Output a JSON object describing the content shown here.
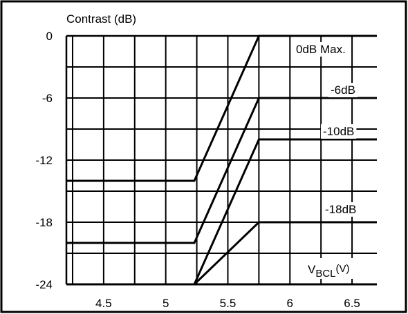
{
  "chart_data": {
    "type": "line",
    "ylabel": "Contrast (dB)",
    "xlabel_main": "V",
    "xlabel_sub": "BCL",
    "xlabel_unit": "(V)",
    "xlim": [
      4.2,
      6.7
    ],
    "ylim": [
      -24,
      0
    ],
    "x_ticks": [
      4.5,
      5,
      5.5,
      6,
      6.5
    ],
    "y_ticks": [
      0,
      -6,
      -12,
      -18,
      -24
    ],
    "x_tick_labels": [
      "4.5",
      "5",
      "5.5",
      "6",
      "6.5"
    ],
    "y_tick_labels": [
      "0",
      "-6",
      "-12",
      "-18",
      "-24"
    ],
    "grid": true,
    "series": [
      {
        "name": "0dB Max.",
        "x": [
          4.2,
          5.23,
          5.75,
          6.7
        ],
        "y": [
          -14,
          -14,
          0,
          0
        ]
      },
      {
        "name": "-6dB",
        "x": [
          4.2,
          5.23,
          5.75,
          6.7
        ],
        "y": [
          -20,
          -20,
          -6,
          -6
        ]
      },
      {
        "name": "-10dB",
        "x": [
          4.2,
          5.23,
          5.75,
          6.7
        ],
        "y": [
          -24,
          -24,
          -10,
          -10
        ]
      },
      {
        "name": "-18dB",
        "x": [
          4.2,
          5.23,
          5.75,
          6.7
        ],
        "y": [
          -24,
          -24,
          -18,
          -18
        ]
      }
    ]
  }
}
